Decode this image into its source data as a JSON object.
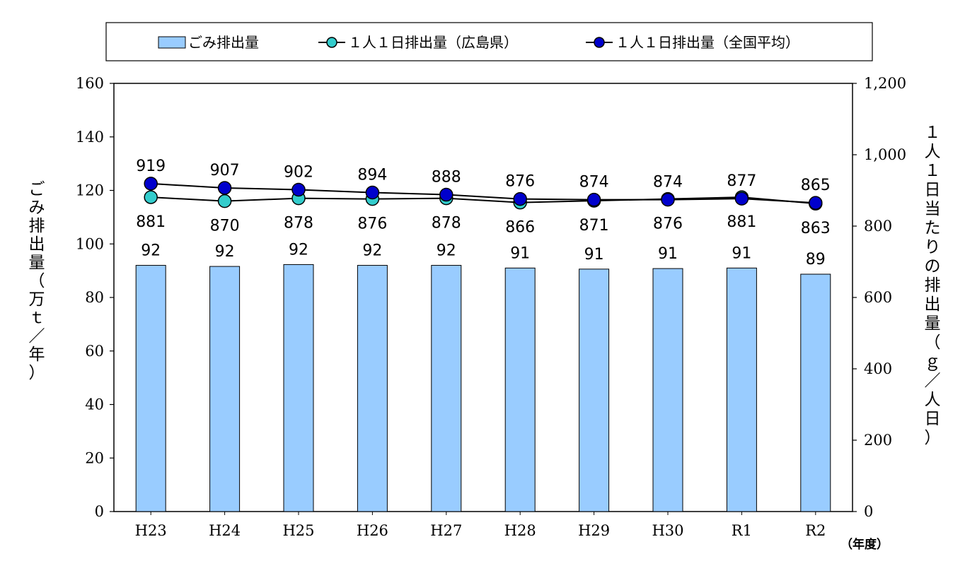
{
  "chart_data": {
    "type": "bar+line",
    "categories": [
      "H23",
      "H24",
      "H25",
      "H26",
      "H27",
      "H28",
      "H29",
      "H30",
      "R1",
      "R2"
    ],
    "series": [
      {
        "name": "ごみ排出量",
        "type": "bar",
        "axis": "left",
        "color": "#99ccff",
        "values": [
          92.0,
          91.6,
          92.3,
          92.0,
          92.0,
          91.0,
          90.6,
          90.8,
          91.0,
          88.7
        ],
        "labels": [
          "92",
          "92",
          "92",
          "92",
          "92",
          "91",
          "91",
          "91",
          "91",
          "89"
        ]
      },
      {
        "name": "１人１日排出量（広島県）",
        "type": "line",
        "axis": "right",
        "color": "#33cccc",
        "values": [
          881,
          870,
          878,
          876,
          878,
          866,
          871,
          876,
          881,
          863
        ]
      },
      {
        "name": "１人１日排出量（全国平均）",
        "type": "line",
        "axis": "right",
        "color": "#0000cc",
        "values": [
          919,
          907,
          902,
          894,
          888,
          876,
          874,
          874,
          877,
          865
        ]
      }
    ],
    "left_axis": {
      "title": [
        "ご",
        "み",
        "排",
        "出",
        "量",
        "（",
        "万",
        "ｔ",
        "／",
        "年",
        "）"
      ],
      "ticks": [
        "0",
        "20",
        "40",
        "60",
        "80",
        "100",
        "120",
        "140",
        "160"
      ],
      "ylim": [
        0,
        160
      ]
    },
    "right_axis": {
      "title": [
        "１",
        "人",
        "１",
        "日",
        "当",
        "た",
        "り",
        "の",
        "排",
        "出",
        "量",
        "（",
        "ｇ",
        "／",
        "人",
        "日",
        "）"
      ],
      "ticks": [
        "0",
        "200",
        "400",
        "600",
        "800",
        "1,000",
        "1,200"
      ],
      "ylim": [
        0,
        1200
      ]
    },
    "x_unit": "（年度）",
    "legend_position": "top"
  }
}
